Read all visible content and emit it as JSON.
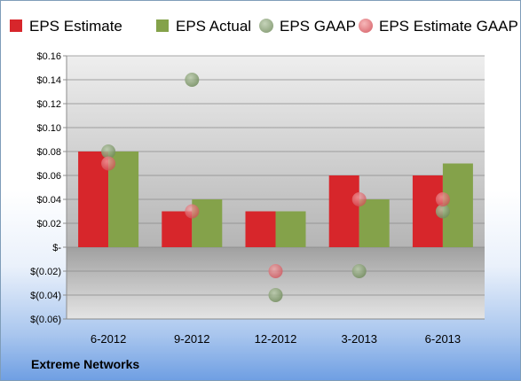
{
  "footer": {
    "company": "Extreme Networks"
  },
  "chart_data": {
    "type": "bar",
    "categories": [
      "6-2012",
      "9-2012",
      "12-2012",
      "3-2013",
      "6-2013"
    ],
    "series": [
      {
        "name": "EPS Estimate",
        "kind": "bar",
        "color": "#d7262b",
        "values": [
          0.08,
          0.03,
          0.03,
          0.06,
          0.06
        ]
      },
      {
        "name": "EPS Actual",
        "kind": "bar",
        "color": "#84a24a",
        "values": [
          0.08,
          0.04,
          0.03,
          0.04,
          0.07
        ]
      },
      {
        "name": "EPS GAAP",
        "kind": "scatter",
        "color": "#8faa7e",
        "values": [
          0.08,
          0.14,
          -0.04,
          -0.02,
          0.03
        ]
      },
      {
        "name": "EPS Estimate GAAP",
        "kind": "scatter",
        "color": "#e8767b",
        "values": [
          0.07,
          0.03,
          -0.02,
          0.04,
          0.04
        ]
      }
    ],
    "ylim": [
      -0.06,
      0.16
    ],
    "yticks": [
      -0.06,
      -0.04,
      -0.02,
      0,
      0.02,
      0.04,
      0.06,
      0.08,
      0.1,
      0.12,
      0.14,
      0.16
    ],
    "ytick_labels": [
      "$(0.06)",
      "$(0.04)",
      "$(0.02)",
      "$-",
      "$0.02",
      "$0.04",
      "$0.06",
      "$0.08",
      "$0.10",
      "$0.12",
      "$0.14",
      "$0.16"
    ],
    "grid": true,
    "legend": "top"
  }
}
